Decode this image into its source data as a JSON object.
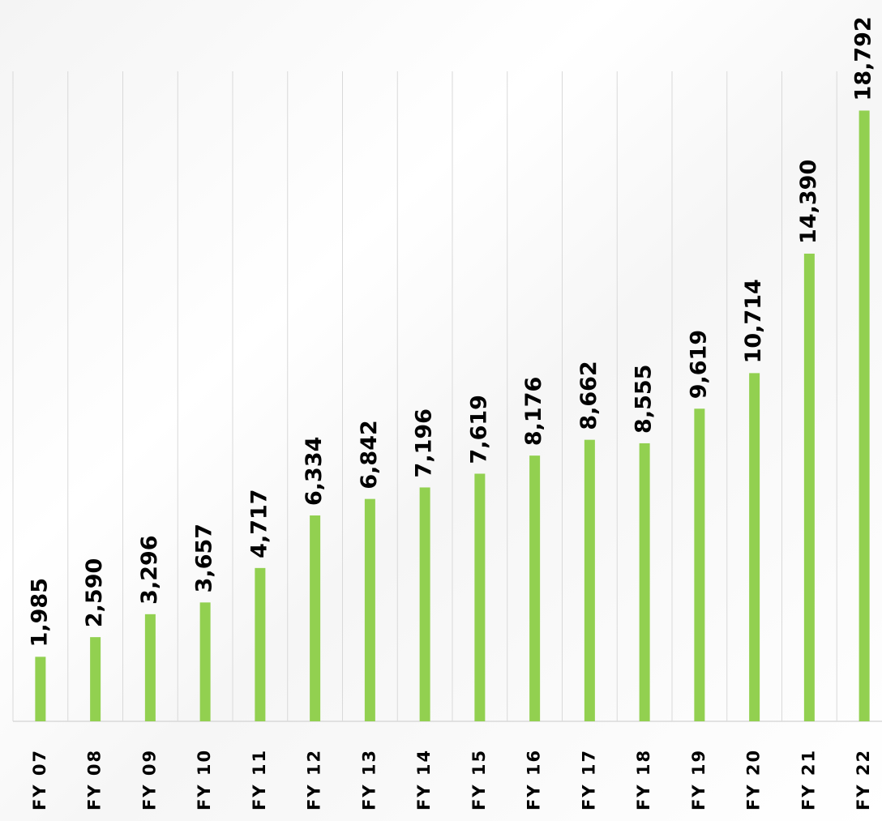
{
  "chart_data": {
    "type": "bar",
    "categories": [
      "FY 07",
      "FY 08",
      "FY 09",
      "FY 10",
      "FY 11",
      "FY 12",
      "FY 13",
      "FY 14",
      "FY 15",
      "FY 16",
      "FY 17",
      "FY 18",
      "FY 19",
      "FY 20",
      "FY 21",
      "FY 22"
    ],
    "values": [
      1985,
      2590,
      3296,
      3657,
      4717,
      6334,
      6842,
      7196,
      7619,
      8176,
      8662,
      8555,
      9619,
      10714,
      14390,
      18792
    ],
    "value_labels": [
      "1,985",
      "2,590",
      "3,296",
      "3,657",
      "4,717",
      "6,334",
      "6,842",
      "7,196",
      "7,619",
      "8,176",
      "8,662",
      "8,555",
      "9,619",
      "10,714",
      "14,390",
      "18,792"
    ],
    "color": "#92d050",
    "ylim": [
      0,
      20000
    ],
    "grid": true
  }
}
